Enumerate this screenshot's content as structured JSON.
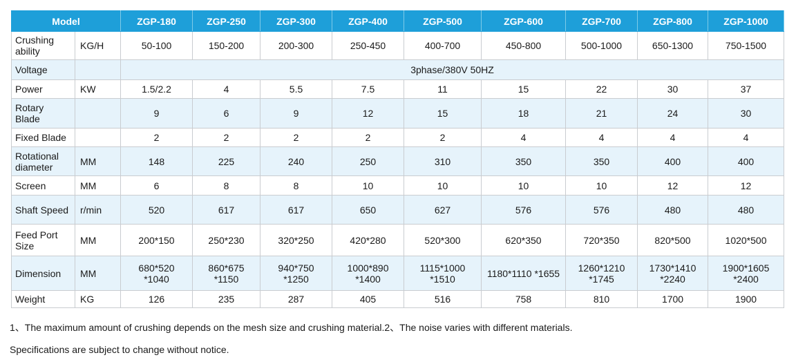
{
  "table": {
    "header": {
      "model_label": "Model",
      "models": [
        "ZGP-180",
        "ZGP-250",
        "ZGP-300",
        "ZGP-400",
        "ZGP-500",
        "ZGP-600",
        "ZGP-700",
        "ZGP-800",
        "ZGP-1000"
      ]
    },
    "rows": {
      "crushing": {
        "label": "Crushing ability",
        "unit": "KG/H",
        "values": [
          "50-100",
          "150-200",
          "200-300",
          "250-450",
          "400-700",
          "450-800",
          "500-1000",
          "650-1300",
          "750-1500"
        ]
      },
      "voltage": {
        "label": "Voltage",
        "unit": "",
        "value": "3phase/380V 50HZ"
      },
      "power": {
        "label": "Power",
        "unit": "KW",
        "values": [
          "1.5/2.2",
          "4",
          "5.5",
          "7.5",
          "11",
          "15",
          "22",
          "30",
          "37"
        ]
      },
      "rotary_blade": {
        "label": "Rotary Blade",
        "unit": "",
        "values": [
          "9",
          "6",
          "9",
          "12",
          "15",
          "18",
          "21",
          "24",
          "30"
        ]
      },
      "fixed_blade": {
        "label": "Fixed Blade",
        "unit": "",
        "values": [
          "2",
          "2",
          "2",
          "2",
          "2",
          "4",
          "4",
          "4",
          "4"
        ]
      },
      "rotational_diameter": {
        "label": "Rotational diameter",
        "unit": "MM",
        "values": [
          "148",
          "225",
          "240",
          "250",
          "310",
          "350",
          "350",
          "400",
          "400"
        ]
      },
      "screen": {
        "label": "Screen",
        "unit": "MM",
        "values": [
          "6",
          "8",
          "8",
          "10",
          "10",
          "10",
          "10",
          "12",
          "12"
        ]
      },
      "shaft_speed": {
        "label": "Shaft Speed",
        "unit": "r/min",
        "values": [
          "520",
          "617",
          "617",
          "650",
          "627",
          "576",
          "576",
          "480",
          "480"
        ]
      },
      "feed_port": {
        "label": "Feed Port Size",
        "unit": "MM",
        "values": [
          "200*150",
          "250*230",
          "320*250",
          "420*280",
          "520*300",
          "620*350",
          "720*350",
          "820*500",
          "1020*500"
        ]
      },
      "dimension": {
        "label": "Dimension",
        "unit": "MM",
        "values": [
          "680*520 *1040",
          "860*675 *1150",
          "940*750 *1250",
          "1000*890 *1400",
          "1115*1000 *1510",
          "1180*1110 *1655",
          "1260*1210 *1745",
          "1730*1410 *2240",
          "1900*1605 *2400"
        ]
      },
      "weight": {
        "label": "Weight",
        "unit": "KG",
        "values": [
          "126",
          "235",
          "287",
          "405",
          "516",
          "758",
          "810",
          "1700",
          "1900"
        ]
      }
    }
  },
  "notes": {
    "line1": "1、The maximum amount of crushing depends on the mesh size and crushing material.2、The noise varies with different materials.",
    "line2": "Specifications are subject to change without notice."
  }
}
